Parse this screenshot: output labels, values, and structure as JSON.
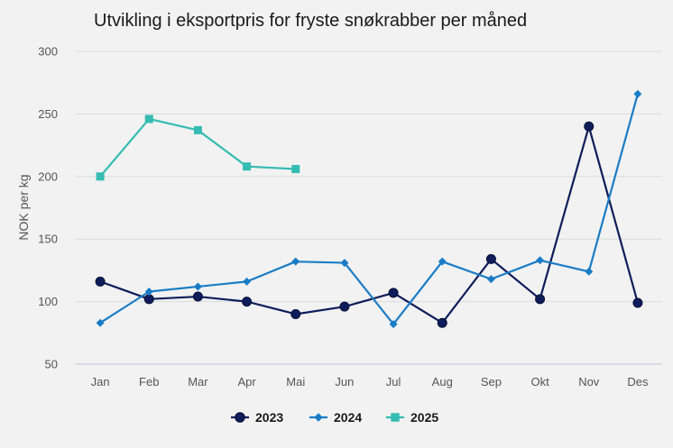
{
  "chart_data": {
    "type": "line",
    "title": "Utvikling i eksportpris for fryste snøkrabber per måned",
    "xlabel": "",
    "ylabel": "NOK per kg",
    "ylim": [
      50,
      300
    ],
    "yticks": [
      50,
      100,
      150,
      200,
      250,
      300
    ],
    "grid": true,
    "legend_position": "bottom",
    "categories": [
      "Jan",
      "Feb",
      "Mar",
      "Apr",
      "Mai",
      "Jun",
      "Jul",
      "Aug",
      "Sep",
      "Okt",
      "Nov",
      "Des"
    ],
    "series": [
      {
        "name": "2023",
        "color": "#0e1d5a",
        "marker": "circle",
        "values": [
          116,
          102,
          104,
          100,
          90,
          96,
          107,
          83,
          134,
          102,
          240,
          99
        ]
      },
      {
        "name": "2024",
        "color": "#1a7cc6",
        "marker": "diamond",
        "values": [
          83,
          108,
          112,
          116,
          132,
          131,
          82,
          132,
          118,
          133,
          124,
          266
        ]
      },
      {
        "name": "2025",
        "color": "#35bcb2",
        "marker": "square",
        "values": [
          200,
          246,
          237,
          208,
          206,
          null,
          null,
          null,
          null,
          null,
          null,
          null
        ]
      }
    ]
  }
}
